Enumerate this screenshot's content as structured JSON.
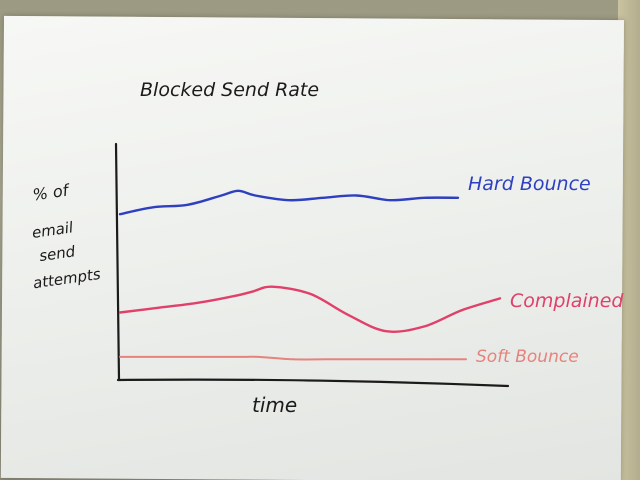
{
  "chart_data": {
    "type": "line",
    "title": "Blocked Send Rate",
    "xlabel": "time",
    "ylabel": "% of email send attempts",
    "ylim": [
      0,
      1
    ],
    "grid": false,
    "legend_placement": "right, at line ends",
    "x": [
      0,
      0.1,
      0.2,
      0.3,
      0.35,
      0.4,
      0.5,
      0.6,
      0.7,
      0.8,
      0.9,
      1.0
    ],
    "series": [
      {
        "name": "Hard Bounce",
        "color": "#2e3fbf",
        "values": [
          0.7,
          0.73,
          0.74,
          0.78,
          0.8,
          0.78,
          0.76,
          0.77,
          0.78,
          0.76,
          0.77,
          0.77
        ]
      },
      {
        "name": "Complained",
        "color": "#e0406a",
        "values": [
          0.28,
          0.3,
          0.32,
          0.35,
          0.37,
          0.39,
          0.36,
          0.27,
          0.2,
          0.22,
          0.29,
          0.34
        ]
      },
      {
        "name": "Soft Bounce",
        "color": "#e5837c",
        "values": [
          0.09,
          0.09,
          0.09,
          0.09,
          0.09,
          0.09,
          0.08,
          0.08,
          0.08,
          0.08,
          0.08,
          0.08
        ]
      }
    ]
  },
  "labels": {
    "title": "Blocked Send Rate",
    "ylabel_line1": "% of",
    "ylabel_line2": "email",
    "ylabel_line3": "send",
    "ylabel_line4": "attempts",
    "xlabel": "time"
  }
}
